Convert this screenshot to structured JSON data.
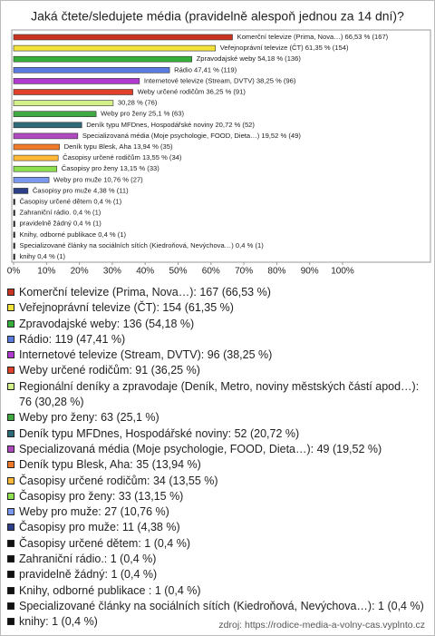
{
  "chart_data": {
    "type": "bar",
    "orientation": "horizontal",
    "title": "Jaká čtete/sledujete média (pravidelně alespoň jednou za 14 dní)?",
    "categories": [
      "Komerční televize (Prima, Nova…): 167 (66,53 %)",
      "Veřejnoprávní televize (ČT): 154 (61,35 %)",
      "Zpravodajské weby: 136 (54,18 %)",
      "Rádio: 119 (47,41 %)",
      "Internetové televize (Stream, DVTV): 96 (38,25 %)",
      "Weby určené rodičům: 91 (36,25 %)",
      "Regionální deníky a zpravodaje (Deník, Metro, noviny městských částí apod…): 76 (30,28 %)",
      "Weby pro ženy: 63 (25,1 %)",
      "Deník typu MFDnes, Hospodářské noviny: 52 (20,72 %)",
      "Specializovaná média (Moje psychologie, FOOD, Dieta…): 49 (19,52 %)",
      "Deník typu Blesk, Aha: 35 (13,94 %)",
      "Časopisy určené rodičům: 34 (13,55 %)",
      "Časopisy pro ženy: 33 (13,15 %)",
      "Weby pro muže: 27 (10,76 %)",
      "Časopisy pro muže: 11 (4,38 %)",
      "Časopisy určené dětem: 1 (0,4 %)",
      "Zahraniční rádio.: 1 (0,4 %)",
      "pravidelně žádný: 1 (0,4 %)",
      "Knihy, odborné publikace : 1 (0,4 %)",
      "Specializované články na sociálních sítích (Kiedroňová, Nevýchova…): 1 (0,4 %)",
      "knihy: 1 (0,4 %)"
    ],
    "values": [
      66.53,
      61.35,
      54.18,
      47.41,
      38.25,
      36.25,
      30.28,
      25.1,
      20.72,
      19.52,
      13.94,
      13.55,
      13.15,
      10.76,
      4.38,
      0.4,
      0.4,
      0.4,
      0.4,
      0.4,
      0.4
    ],
    "value_labels": [
      "Komerční televize (Prima, Nova…) 66,53 % (167)",
      "Veřejnoprávní televize (ČT) 61,35 % (154)",
      "Zpravodajské weby 54,18 % (136)",
      "Rádio 47,41 % (119)",
      "Internetové televize (Stream, DVTV) 38,25 % (96)",
      "Weby určené rodičům 36,25 % (91)",
      "30,28 % (76)",
      "Weby pro ženy 25,1 % (63)",
      "Deník typu MFDnes, Hospodářské noviny 20,72 % (52)",
      "Specializovaná média (Moje psychologie, FOOD, Dieta…) 19,52 % (49)",
      "Deník typu Blesk, Aha 13,94 % (35)",
      "Časopisy určené rodičům 13,55 % (34)",
      "Časopisy pro ženy 13,15 % (33)",
      "Weby pro muže 10,76 % (27)",
      "Časopisy pro muže 4,38 % (11)",
      "Časopisy určené dětem 0,4 % (1)",
      "Zahraniční rádio. 0,4 % (1)",
      "pravidelně žádný 0,4 % (1)",
      "Knihy, odborné publikace  0,4 % (1)",
      "Specializované články na sociálních sítích (Kiedroňová, Nevýchova…) 0,4 % (1)",
      "knihy 0,4 % (1)"
    ],
    "colors": [
      "#c8341f",
      "#f2e23a",
      "#36b03a",
      "#5a7be0",
      "#b03ad0",
      "#e0402a",
      "#d4f08a",
      "#3ea842",
      "#2f6a78",
      "#b048c0",
      "#f07a28",
      "#ffb838",
      "#8ee050",
      "#7a98ee",
      "#2e3f8a",
      "#111111",
      "#111111",
      "#111111",
      "#111111",
      "#111111",
      "#111111"
    ],
    "xlim": [
      0,
      100
    ],
    "xticks": [
      {
        "value": 0,
        "label": "0%"
      },
      {
        "value": 10,
        "label": "10%"
      },
      {
        "value": 20,
        "label": "20%"
      },
      {
        "value": 30,
        "label": "30%"
      },
      {
        "value": 40,
        "label": "40%"
      },
      {
        "value": 50,
        "label": "50%"
      },
      {
        "value": 60,
        "label": "60%"
      },
      {
        "value": 70,
        "label": "70%"
      },
      {
        "value": 80,
        "label": "80%"
      },
      {
        "value": 90,
        "label": "90%"
      },
      {
        "value": 100,
        "label": "100%"
      }
    ],
    "source": "zdroj: https://rodice-media-a-volny-cas.vyplnto.cz"
  }
}
